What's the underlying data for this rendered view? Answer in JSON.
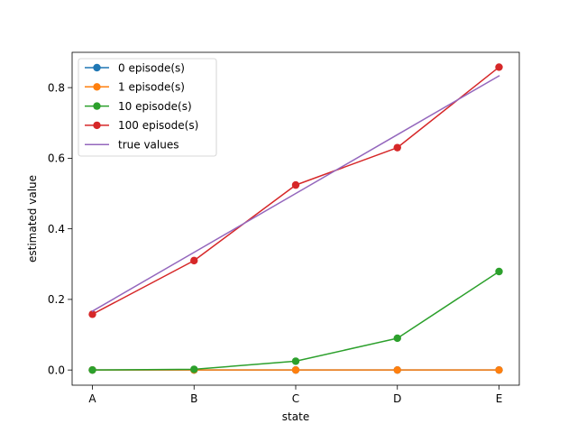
{
  "chart_data": {
    "type": "line",
    "title": "",
    "xlabel": "state",
    "ylabel": "estimated value",
    "categories": [
      "A",
      "B",
      "C",
      "D",
      "E"
    ],
    "ylim": [
      -0.043,
      0.9
    ],
    "yticks": [
      0.0,
      0.2,
      0.4,
      0.6,
      0.8
    ],
    "ytick_labels": [
      "0.0",
      "0.2",
      "0.4",
      "0.6",
      "0.8"
    ],
    "grid": false,
    "legend_position": "upper-left",
    "series": [
      {
        "name": "0 episode(s)",
        "color": "#1f77b4",
        "marker": true,
        "values": [
          0.0,
          0.0,
          0.0,
          0.0,
          0.0
        ]
      },
      {
        "name": "1 episode(s)",
        "color": "#ff7f0e",
        "marker": true,
        "values": [
          0.0,
          0.0,
          0.0,
          0.0,
          0.0
        ]
      },
      {
        "name": "10 episode(s)",
        "color": "#2ca02c",
        "marker": true,
        "values": [
          0.0,
          0.002,
          0.025,
          0.09,
          0.279
        ]
      },
      {
        "name": "100 episode(s)",
        "color": "#d62728",
        "marker": true,
        "values": [
          0.158,
          0.31,
          0.524,
          0.63,
          0.858
        ]
      },
      {
        "name": "true values",
        "color": "#9467bd",
        "marker": false,
        "values": [
          0.1667,
          0.3333,
          0.5,
          0.6667,
          0.8333
        ]
      }
    ]
  }
}
